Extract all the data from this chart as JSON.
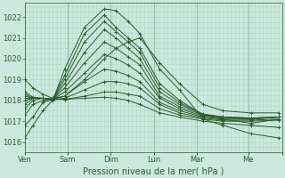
{
  "xlabel": "Pression niveau de la mer( hPa )",
  "bg_color": "#cce8de",
  "grid_color_minor": "#b0d8c8",
  "grid_color_major": "#90c0a8",
  "line_color": "#2a5c2a",
  "marker": "+",
  "xlim": [
    0,
    6.5
  ],
  "ylim": [
    1015.5,
    1022.7
  ],
  "yticks": [
    1016,
    1017,
    1018,
    1019,
    1020,
    1021,
    1022
  ],
  "xtick_positions": [
    0.0,
    1.083,
    2.167,
    3.25,
    4.333,
    5.633,
    6.5
  ],
  "xtick_labels": [
    "Ven",
    "Sam",
    "Dim",
    "Lun",
    "Mar",
    "Me",
    ""
  ],
  "day_separators": [
    0.0,
    1.083,
    2.167,
    3.25,
    4.333,
    5.633
  ],
  "series": [
    [
      1016.8,
      1017.2,
      1017.9,
      1018.05,
      1019.2,
      1021.2,
      1022.1,
      1021.5,
      1021.0,
      1020.5,
      1018.8,
      1018.0,
      1017.3,
      1017.1,
      1016.9,
      1017.1
    ],
    [
      1017.3,
      1017.8,
      1018.0,
      1018.05,
      1019.0,
      1020.8,
      1021.8,
      1021.3,
      1020.8,
      1020.3,
      1018.6,
      1017.9,
      1017.3,
      1017.2,
      1017.1,
      1017.2
    ],
    [
      1017.6,
      1018.0,
      1018.1,
      1018.05,
      1018.8,
      1020.3,
      1021.4,
      1021.0,
      1020.5,
      1020.0,
      1018.4,
      1017.8,
      1017.35,
      1017.2,
      1017.15,
      1017.2
    ],
    [
      1017.8,
      1018.1,
      1018.1,
      1018.05,
      1018.6,
      1019.8,
      1020.8,
      1020.5,
      1020.1,
      1019.7,
      1018.2,
      1017.7,
      1017.3,
      1017.2,
      1017.15,
      1017.2
    ],
    [
      1018.0,
      1018.1,
      1018.1,
      1018.05,
      1018.4,
      1019.3,
      1020.2,
      1020.0,
      1019.7,
      1019.3,
      1018.1,
      1017.6,
      1017.25,
      1017.15,
      1017.1,
      1017.2
    ],
    [
      1018.1,
      1018.1,
      1018.1,
      1018.05,
      1018.2,
      1018.9,
      1019.5,
      1019.4,
      1019.2,
      1018.9,
      1017.9,
      1017.5,
      1017.2,
      1017.1,
      1017.1,
      1017.2
    ],
    [
      1018.2,
      1018.1,
      1018.1,
      1018.05,
      1018.1,
      1018.5,
      1018.9,
      1018.9,
      1018.8,
      1018.6,
      1017.8,
      1017.4,
      1017.15,
      1017.05,
      1017.05,
      1017.1
    ],
    [
      1018.3,
      1018.1,
      1018.1,
      1018.05,
      1018.05,
      1018.2,
      1018.4,
      1018.4,
      1018.3,
      1018.2,
      1017.6,
      1017.3,
      1017.1,
      1017.0,
      1017.0,
      1017.05
    ],
    [
      1018.4,
      1018.15,
      1018.1,
      1018.05,
      1018.05,
      1018.1,
      1018.15,
      1018.1,
      1018.0,
      1017.8,
      1017.4,
      1017.2,
      1017.0,
      1016.9,
      1016.8,
      1016.7
    ],
    [
      1019.0,
      1018.6,
      1018.3,
      1018.1,
      1018.2,
      1019.0,
      1020.0,
      1020.5,
      1020.8,
      1021.0,
      1019.8,
      1018.8,
      1017.8,
      1017.5,
      1017.4,
      1017.4
    ],
    [
      1016.2,
      1016.8,
      1017.5,
      1018.0,
      1019.5,
      1021.5,
      1022.4,
      1022.3,
      1021.8,
      1021.2,
      1019.5,
      1018.5,
      1017.1,
      1016.8,
      1016.4,
      1016.2
    ]
  ],
  "x_series": [
    0.0,
    0.2,
    0.45,
    0.7,
    1.0,
    1.5,
    2.0,
    2.3,
    2.6,
    2.9,
    3.4,
    3.9,
    4.5,
    5.0,
    5.7,
    6.4
  ]
}
